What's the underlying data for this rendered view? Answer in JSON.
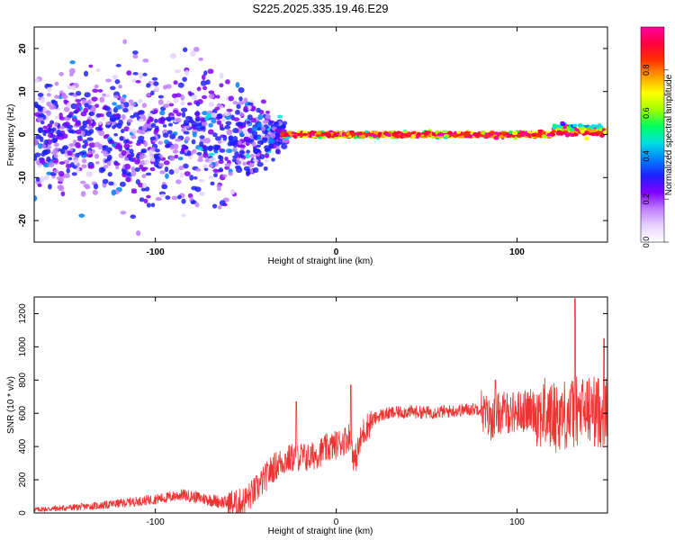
{
  "title": "S225.2025.335.19.46.E29",
  "chart_data": [
    {
      "type": "heatmap",
      "xlabel": "Height of straight line (km)",
      "ylabel": "Frequency (Hz)",
      "xlim": [
        -167,
        150
      ],
      "ylim": [
        -25,
        25
      ],
      "xticks": [
        -100,
        0,
        100
      ],
      "yticks": [
        -20,
        -10,
        0,
        10,
        20
      ],
      "colorbar": {
        "label": "Normalized spectral amplitude",
        "range": [
          0,
          1
        ],
        "ticks": [
          "0.0",
          "0.2",
          "0.4",
          "0.6",
          "0.8"
        ],
        "colors": [
          "#ffffff",
          "#e6d2ff",
          "#c080ff",
          "#8000ff",
          "#2020ff",
          "#0080ff",
          "#00e0e0",
          "#00ff60",
          "#a0ff00",
          "#ffff00",
          "#ffa000",
          "#ff3000",
          "#ff0040",
          "#ff00a0"
        ]
      },
      "description_points": {
        "note_ridge": "narrow band near 0 Hz from about -30 km to 150 km",
        "scatter_region": "broad purple scatter from -167 km to about -30 km spanning full frequency range"
      }
    },
    {
      "type": "line",
      "xlabel": "Height of straight line (km)",
      "ylabel": "SNR (10 * v/v)",
      "xlim": [
        -167,
        150
      ],
      "ylim": [
        0,
        1300
      ],
      "xticks": [
        -100,
        0,
        100
      ],
      "yticks": [
        0,
        200,
        400,
        600,
        800,
        1000,
        1200
      ],
      "color": "#ee3333",
      "series": [
        {
          "name": "SNR",
          "x": [
            -167,
            -150,
            -130,
            -110,
            -95,
            -85,
            -70,
            -60,
            -55,
            -50,
            -45,
            -40,
            -35,
            -30,
            -25,
            -20,
            -15,
            -10,
            -5,
            0,
            5,
            8,
            10,
            15,
            20,
            25,
            30,
            40,
            50,
            60,
            70,
            80,
            85,
            90,
            100,
            110,
            120,
            130,
            140,
            150
          ],
          "y": [
            20,
            30,
            45,
            70,
            90,
            110,
            80,
            60,
            50,
            80,
            130,
            200,
            270,
            310,
            330,
            340,
            330,
            360,
            390,
            410,
            440,
            470,
            300,
            490,
            560,
            590,
            600,
            610,
            605,
            610,
            620,
            630,
            560,
            600,
            610,
            620,
            580,
            600,
            620,
            600
          ]
        }
      ],
      "peaks": [
        {
          "x": -22,
          "y": 670
        },
        {
          "x": 8,
          "y": 770
        },
        {
          "x": 88,
          "y": 800
        },
        {
          "x": 132,
          "y": 1290
        },
        {
          "x": 148,
          "y": 1050
        }
      ]
    }
  ]
}
